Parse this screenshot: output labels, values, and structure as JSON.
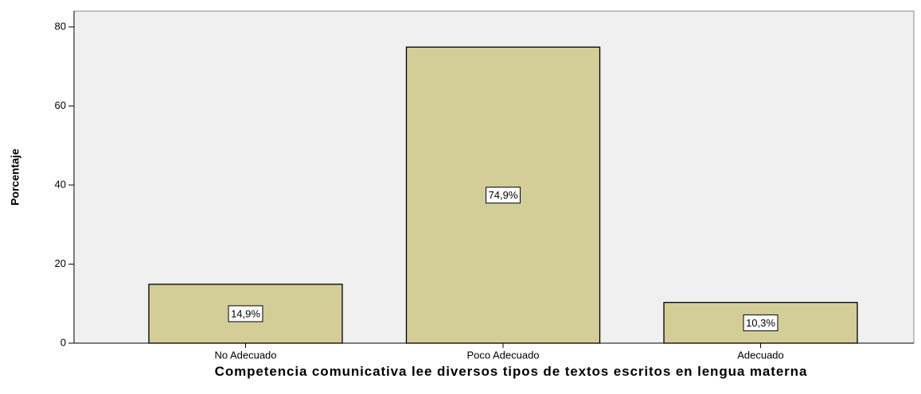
{
  "chart_data": {
    "type": "bar",
    "categories": [
      "No Adecuado",
      "Poco Adecuado",
      "Adecuado"
    ],
    "values": [
      14.9,
      74.9,
      10.3
    ],
    "value_labels": [
      "14,9%",
      "74,9%",
      "10,3%"
    ],
    "color": "#d3cd98",
    "y_label": "Porcentaje",
    "x_label": "Competencia comunicativa lee diversos tipos de textos escritos en lengua materna",
    "ylim": [
      0,
      84
    ],
    "yticks": [
      0,
      20,
      40,
      60,
      80
    ],
    "grid": false
  }
}
